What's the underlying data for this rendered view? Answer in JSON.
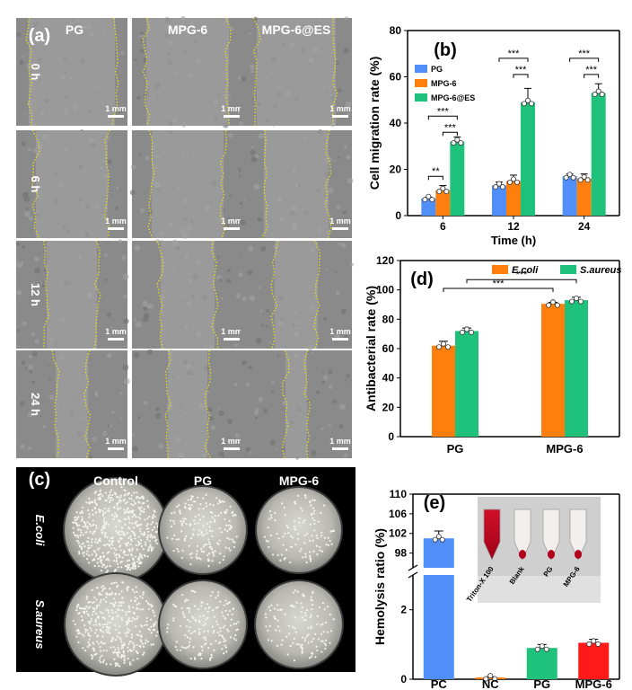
{
  "panel_a": {
    "label": "(a)",
    "columns": [
      "PG",
      "MPG-6",
      "MPG-6@ES"
    ],
    "rows": [
      "0 h",
      "6 h",
      "12 h",
      "24 h"
    ],
    "scale_bar": "1 mm"
  },
  "panel_c": {
    "label": "(c)",
    "columns": [
      "Control",
      "PG",
      "MPG-6"
    ],
    "rows": [
      "E.coli",
      "S.aureus"
    ]
  },
  "colors": {
    "blue": "#4f8ff7",
    "orange": "#ff7f0e",
    "green": "#1ec27a",
    "yellow_line": "#e8e020"
  },
  "chart_data": [
    {
      "id": "b",
      "label": "(b)",
      "type": "bar",
      "ylabel": "Cell migration rate (%)",
      "xlabel": "Time (h)",
      "categories": [
        "6",
        "12",
        "24"
      ],
      "ylim": [
        0,
        80
      ],
      "yticks": [
        0,
        20,
        40,
        60,
        80
      ],
      "legend_position": "top-left",
      "series": [
        {
          "name": "PG",
          "color": "#4f8ff7",
          "values": [
            7.5,
            13,
            17
          ],
          "errors": [
            0.5,
            1.5,
            1
          ]
        },
        {
          "name": "MPG-6",
          "color": "#ff7f0e",
          "values": [
            11,
            15,
            16
          ],
          "errors": [
            2,
            2.5,
            2
          ]
        },
        {
          "name": "MPG-6@ES",
          "color": "#1ec27a",
          "values": [
            32,
            49,
            53
          ],
          "errors": [
            2,
            6,
            4
          ]
        }
      ],
      "significance": [
        {
          "category": 0,
          "from": 0,
          "to": 1,
          "text": "**",
          "y": 17
        },
        {
          "category": 0,
          "from": 0,
          "to": 2,
          "text": "***",
          "y": 43
        },
        {
          "category": 0,
          "from": 1,
          "to": 2,
          "text": "***",
          "y": 36
        },
        {
          "category": 1,
          "from": 0,
          "to": 2,
          "text": "***",
          "y": 68
        },
        {
          "category": 1,
          "from": 1,
          "to": 2,
          "text": "***",
          "y": 61
        },
        {
          "category": 2,
          "from": 0,
          "to": 2,
          "text": "***",
          "y": 68
        },
        {
          "category": 2,
          "from": 1,
          "to": 2,
          "text": "***",
          "y": 61
        }
      ]
    },
    {
      "id": "d",
      "label": "(d)",
      "type": "bar",
      "ylabel": "Antibacterial rate (%)",
      "xlabel": "",
      "categories": [
        "PG",
        "MPG-6"
      ],
      "ylim": [
        0,
        120
      ],
      "yticks": [
        0,
        20,
        40,
        60,
        80,
        100,
        120
      ],
      "legend_position": "top-right",
      "series": [
        {
          "name": "E.coli",
          "color": "#ff7f0e",
          "values": [
            62,
            90.5
          ],
          "errors": [
            3,
            1
          ]
        },
        {
          "name": "S.aureus",
          "color": "#1ec27a",
          "values": [
            72,
            93
          ],
          "errors": [
            2,
            2
          ]
        }
      ],
      "significance": [
        {
          "text": "***",
          "y": 107,
          "from_cat": 0,
          "from_series": 1,
          "to_cat": 1,
          "to_series": 1
        },
        {
          "text": "***",
          "y": 101,
          "from_cat": 0,
          "from_series": 0,
          "to_cat": 1,
          "to_series": 0
        }
      ]
    },
    {
      "id": "e",
      "label": "(e)",
      "type": "bar",
      "ylabel": "Hemolysis ratio (%)",
      "xlabel": "",
      "categories": [
        "PC",
        "NC",
        "PG",
        "MPG-6"
      ],
      "broken_axis": {
        "lower": [
          0,
          3
        ],
        "upper": [
          95,
          110
        ]
      },
      "yticks_upper": [
        98,
        102,
        106,
        110
      ],
      "yticks_lower": [
        0,
        2
      ],
      "values": [
        101,
        0.05,
        0.9,
        1.05
      ],
      "errors": [
        1.5,
        0.02,
        0.1,
        0.1
      ],
      "colors": [
        "#4f8ff7",
        "#ff7f0e",
        "#1ec27a",
        "#ff1a1a"
      ],
      "inset_labels": [
        "Triton-X 100",
        "Blank",
        "PG",
        "MPG-6"
      ]
    }
  ]
}
